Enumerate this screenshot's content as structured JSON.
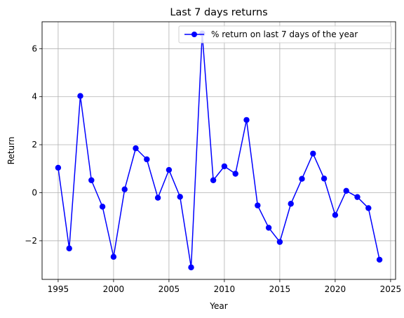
{
  "chart_data": {
    "type": "line",
    "title": "Last 7 days returns",
    "xlabel": "Year",
    "ylabel": "Return",
    "xlim": [
      1993.55,
      2025.45
    ],
    "ylim": [
      -3.61,
      7.12
    ],
    "xticks": [
      1995,
      2000,
      2005,
      2010,
      2015,
      2020,
      2025
    ],
    "yticks": [
      -2,
      0,
      2,
      4,
      6
    ],
    "xtick_labels": [
      "1995",
      "2000",
      "2005",
      "2010",
      "2015",
      "2020",
      "2025"
    ],
    "ytick_labels": [
      "−2",
      "0",
      "2",
      "4",
      "6"
    ],
    "grid": true,
    "legend_position": "upper right",
    "series": [
      {
        "name": "% return on last 7 days of the year",
        "color": "#0000ff",
        "marker": "circle",
        "x": [
          1995,
          1996,
          1997,
          1998,
          1999,
          2000,
          2001,
          2002,
          2003,
          2004,
          2005,
          2006,
          2007,
          2008,
          2009,
          2010,
          2011,
          2012,
          2013,
          2014,
          2015,
          2016,
          2017,
          2018,
          2019,
          2020,
          2021,
          2022,
          2023,
          2024
        ],
        "y": [
          1.04,
          -2.32,
          4.03,
          0.52,
          -0.58,
          -2.67,
          0.14,
          1.85,
          1.39,
          -0.21,
          0.95,
          -0.17,
          -3.11,
          6.63,
          0.52,
          1.1,
          0.79,
          3.03,
          -0.53,
          -1.46,
          -2.05,
          -0.46,
          0.58,
          1.63,
          0.59,
          -0.93,
          0.08,
          -0.18,
          -0.64,
          -2.79
        ]
      }
    ]
  }
}
